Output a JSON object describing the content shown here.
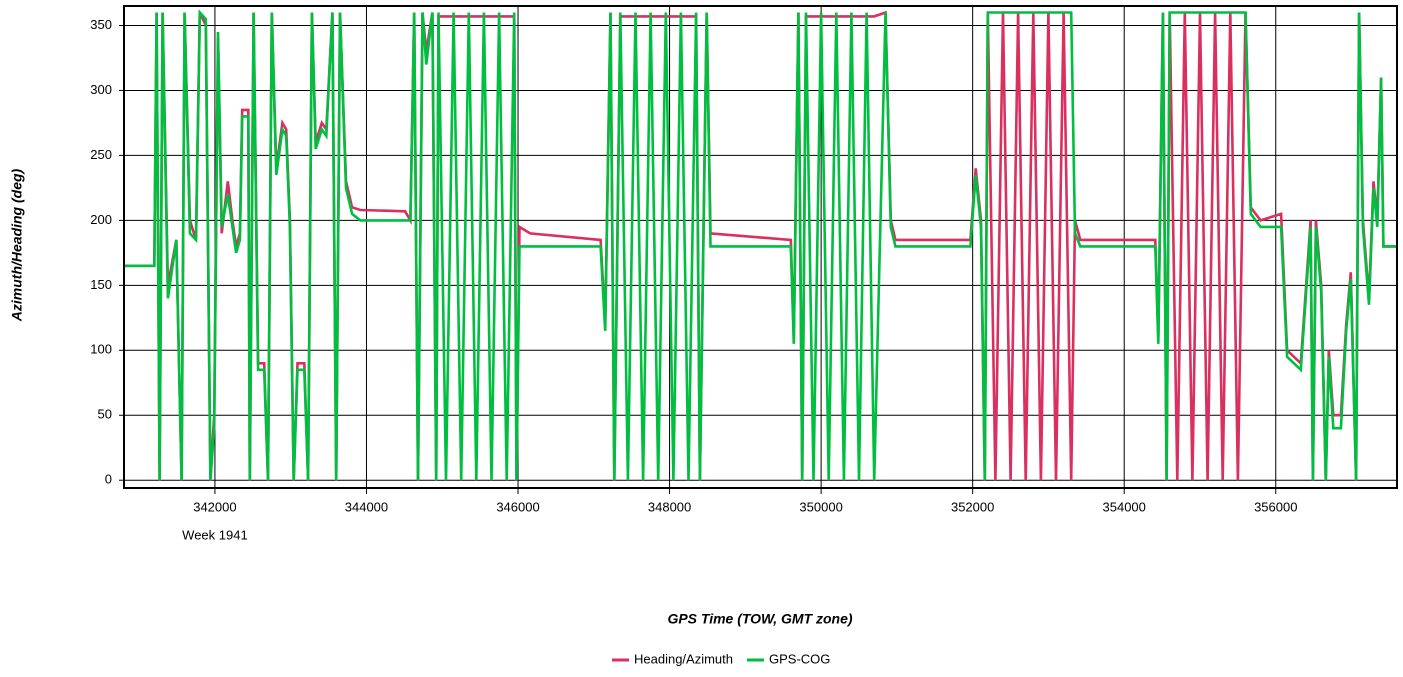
{
  "chart_data": {
    "type": "line",
    "x_label": "GPS Time (TOW, GMT zone)",
    "y_label": "Azimuth/Heading (deg)",
    "x_annotation": "Week 1941",
    "grid": true,
    "legend": "bottom",
    "xlim": [
      340800,
      357600
    ],
    "ylim": [
      -6,
      365
    ],
    "xticks": [
      342000,
      344000,
      346000,
      348000,
      350000,
      352000,
      354000,
      356000
    ],
    "yticks": [
      0,
      50,
      100,
      150,
      200,
      250,
      300,
      350
    ],
    "x": [
      340800,
      341200,
      341230,
      341270,
      341310,
      341380,
      341490,
      341560,
      341600,
      341670,
      341750,
      341800,
      341880,
      341940,
      341990,
      342040,
      342090,
      342170,
      342230,
      342280,
      342330,
      342360,
      342440,
      342460,
      342510,
      342570,
      342650,
      342700,
      342750,
      342810,
      342890,
      342940,
      342990,
      343040,
      343090,
      343180,
      343230,
      343280,
      343330,
      343410,
      343470,
      343550,
      343600,
      343650,
      343730,
      343810,
      343920,
      344510,
      344580,
      344630,
      344680,
      344740,
      344790,
      344870,
      344920,
      344950,
      345050,
      345150,
      345250,
      345350,
      345450,
      345550,
      345650,
      345750,
      345850,
      345950,
      345980,
      346020,
      346160,
      347090,
      347150,
      347220,
      347270,
      347350,
      347450,
      347550,
      347650,
      347750,
      347850,
      347950,
      348050,
      348150,
      348250,
      348350,
      348400,
      348490,
      348540,
      349600,
      349640,
      349700,
      349750,
      349800,
      349900,
      350000,
      350100,
      350200,
      350300,
      350400,
      350500,
      350600,
      350700,
      350850,
      350920,
      350980,
      351970,
      352040,
      352110,
      352160,
      352200,
      352300,
      352400,
      352500,
      352600,
      352700,
      352800,
      352900,
      353000,
      353100,
      353200,
      353300,
      353350,
      353420,
      354410,
      354450,
      354510,
      354560,
      354600,
      354700,
      354800,
      354900,
      355000,
      355100,
      355200,
      355300,
      355400,
      355500,
      355600,
      355670,
      355800,
      356070,
      356150,
      356330,
      356460,
      356490,
      356530,
      356600,
      356660,
      356700,
      356760,
      356860,
      356930,
      356990,
      357060,
      357100,
      357150,
      357230,
      357290,
      357340,
      357390,
      357420,
      357600
    ],
    "series": [
      {
        "name": "Heading/Azimuth",
        "color": "#d9305f",
        "values": [
          165,
          165,
          360,
          0,
          360,
          150,
          185,
          0,
          360,
          200,
          185,
          360,
          350,
          0,
          50,
          340,
          190,
          230,
          200,
          180,
          190,
          285,
          285,
          0,
          360,
          90,
          90,
          0,
          360,
          240,
          275,
          270,
          200,
          0,
          90,
          90,
          0,
          360,
          260,
          275,
          270,
          360,
          0,
          360,
          230,
          210,
          208,
          207,
          200,
          360,
          0,
          360,
          330,
          360,
          0,
          357,
          357,
          357,
          357,
          357,
          357,
          357,
          357,
          357,
          357,
          357,
          0,
          195,
          190,
          185,
          120,
          360,
          0,
          357,
          357,
          357,
          357,
          357,
          357,
          357,
          357,
          357,
          357,
          357,
          0,
          360,
          190,
          185,
          110,
          360,
          0,
          357,
          357,
          357,
          357,
          357,
          357,
          357,
          357,
          357,
          357,
          360,
          200,
          185,
          185,
          240,
          200,
          0,
          360,
          0,
          360,
          0,
          360,
          0,
          360,
          0,
          360,
          0,
          360,
          0,
          200,
          185,
          185,
          110,
          360,
          0,
          360,
          0,
          360,
          0,
          360,
          0,
          360,
          0,
          360,
          0,
          360,
          210,
          200,
          205,
          100,
          90,
          200,
          0,
          200,
          150,
          0,
          100,
          50,
          50,
          120,
          160,
          0,
          360,
          200,
          140,
          230,
          200,
          310,
          180,
          180
        ]
      },
      {
        "name": "GPS-COG",
        "color": "#00bf40",
        "values": [
          165,
          165,
          360,
          0,
          360,
          140,
          185,
          0,
          360,
          190,
          185,
          360,
          355,
          0,
          40,
          345,
          195,
          220,
          195,
          175,
          185,
          280,
          280,
          0,
          360,
          85,
          85,
          0,
          360,
          235,
          270,
          265,
          195,
          0,
          85,
          85,
          0,
          360,
          255,
          270,
          265,
          360,
          0,
          360,
          225,
          205,
          200,
          200,
          200,
          360,
          0,
          360,
          320,
          360,
          0,
          360,
          0,
          360,
          0,
          360,
          0,
          360,
          0,
          360,
          0,
          360,
          0,
          180,
          180,
          180,
          115,
          360,
          0,
          360,
          0,
          360,
          0,
          360,
          0,
          360,
          0,
          360,
          0,
          360,
          0,
          360,
          180,
          180,
          105,
          360,
          0,
          360,
          0,
          360,
          0,
          360,
          0,
          360,
          0,
          360,
          0,
          360,
          195,
          180,
          180,
          235,
          195,
          0,
          360,
          360,
          360,
          360,
          360,
          360,
          360,
          360,
          360,
          360,
          360,
          360,
          190,
          180,
          180,
          105,
          360,
          0,
          360,
          360,
          360,
          360,
          360,
          360,
          360,
          360,
          360,
          360,
          360,
          205,
          195,
          195,
          95,
          85,
          195,
          0,
          195,
          145,
          0,
          95,
          40,
          40,
          115,
          155,
          0,
          360,
          195,
          135,
          225,
          195,
          310,
          180,
          180
        ]
      }
    ]
  }
}
